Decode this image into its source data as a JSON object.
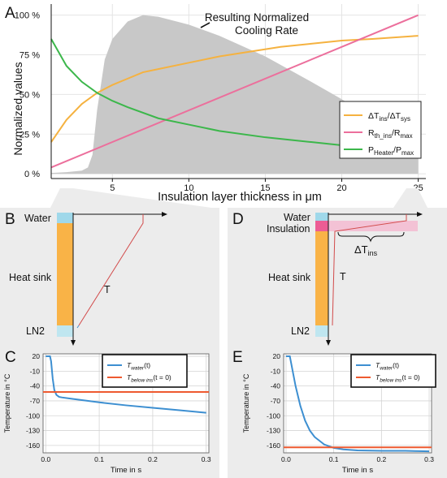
{
  "panel_labels": {
    "A": "A",
    "B": "B",
    "C": "C",
    "D": "D",
    "E": "E"
  },
  "colors": {
    "orange": "#f5b240",
    "pink": "#ec6f9c",
    "green": "#3cb74b",
    "gray_area": "#c8c8c8",
    "blue": "#3d8fd1",
    "red_line": "#ee5a30",
    "heat_sink": "#f9b347",
    "water": "#9fd8ea",
    "ln2": "#bfe6f0",
    "insulation": "#ec5c94",
    "panel_bg": "#ededed"
  },
  "diagram_B": {
    "water": "Water",
    "heat_sink": "Heat sink",
    "ln2": "LN2",
    "t_label": "T"
  },
  "diagram_D": {
    "water": "Water",
    "insulation": "Insulation",
    "heat_sink": "Heat sink",
    "ln2": "LN2",
    "t_label": "T",
    "delta_label": "ΔT",
    "delta_sub": "ins"
  },
  "chart_data": [
    {
      "id": "A",
      "type": "line",
      "xlabel": "Insulation layer thickness in μm",
      "ylabel": "Normalized values",
      "xlim": [
        1,
        25.5
      ],
      "ylim": [
        -3,
        107
      ],
      "xticks": [
        5,
        10,
        15,
        20,
        25
      ],
      "yticks": [
        0,
        25,
        50,
        75,
        100
      ],
      "ytick_labels": [
        "0 %",
        "25 %",
        "50 %",
        "75 %",
        "100 %"
      ],
      "grid": true,
      "legend_position": "right",
      "annotation": "Resulting Normalized Cooling Rate",
      "area": {
        "x": [
          1,
          2,
          3,
          3.4,
          3.7,
          4.0,
          4.5,
          5,
          6,
          7,
          8,
          10,
          12,
          15,
          18,
          20,
          22,
          23,
          24,
          25
        ],
        "y": [
          0.5,
          1,
          2,
          4,
          12,
          40,
          72,
          85,
          96,
          100,
          99,
          94,
          87,
          74,
          58,
          47,
          35,
          28,
          22,
          17
        ]
      },
      "series": [
        {
          "name_main": "ΔT",
          "name_sub": "ins",
          "name_main2": "/ΔT",
          "name_sub2": "sys",
          "color": "#f5b240",
          "x": [
            1,
            2,
            3,
            4,
            5,
            6,
            7,
            8,
            10,
            12,
            14,
            16,
            18,
            20,
            22,
            25
          ],
          "y": [
            20,
            34,
            44,
            51,
            56,
            60,
            64,
            66,
            70,
            74,
            77,
            80,
            82,
            84,
            85,
            87
          ]
        },
        {
          "name_main": "R",
          "name_sub": "th_ins",
          "name_main2": "/R",
          "name_sub2": "max",
          "color": "#ec6f9c",
          "x": [
            1,
            25
          ],
          "y": [
            4,
            100
          ]
        },
        {
          "name_main": "P",
          "name_sub": "Heater",
          "name_main2": "/P",
          "name_sub2": "max",
          "color": "#3cb74b",
          "x": [
            1,
            2,
            3,
            4,
            5,
            6,
            8,
            10,
            12,
            15,
            18,
            20,
            22,
            25
          ],
          "y": [
            85,
            68,
            58,
            51,
            46,
            42,
            35,
            31,
            27,
            23,
            20,
            18,
            17,
            15
          ]
        }
      ]
    },
    {
      "id": "C",
      "type": "line",
      "xlabel": "Time in s",
      "ylabel": "Temperature in °C",
      "xlim": [
        -0.005,
        0.305
      ],
      "ylim": [
        -175,
        25
      ],
      "xticks": [
        0.0,
        0.1,
        0.2,
        0.3
      ],
      "yticks": [
        20,
        -10,
        -40,
        -70,
        -100,
        -130,
        -160
      ],
      "grid": true,
      "legend_position": "top-right",
      "series": [
        {
          "name_main": "T",
          "name_sub": "water",
          "name_suffix": "(t)",
          "color": "#3d8fd1",
          "x": [
            0,
            0.008,
            0.01,
            0.013,
            0.016,
            0.02,
            0.025,
            0.03,
            0.05,
            0.1,
            0.15,
            0.2,
            0.25,
            0.3
          ],
          "y": [
            20,
            20,
            10,
            -25,
            -48,
            -58,
            -62,
            -63,
            -66,
            -73,
            -79,
            -84,
            -89,
            -94
          ]
        },
        {
          "name_main": "T",
          "name_sub": "below ins",
          "name_suffix": "(t = 0)",
          "color": "#ee5a30",
          "x": [
            -0.005,
            0.305
          ],
          "y": [
            -52,
            -52
          ]
        }
      ]
    },
    {
      "id": "E",
      "type": "line",
      "xlabel": "Time in s",
      "ylabel": "Temperature in °C",
      "xlim": [
        -0.005,
        0.305
      ],
      "ylim": [
        -175,
        25
      ],
      "xticks": [
        0.0,
        0.1,
        0.2,
        0.3
      ],
      "yticks": [
        20,
        -10,
        -40,
        -70,
        -100,
        -130,
        -160
      ],
      "grid": true,
      "legend_position": "top-right",
      "series": [
        {
          "name_main": "T",
          "name_sub": "water",
          "name_suffix": "(t)",
          "color": "#3d8fd1",
          "x": [
            0,
            0.008,
            0.01,
            0.015,
            0.02,
            0.03,
            0.04,
            0.05,
            0.06,
            0.08,
            0.1,
            0.12,
            0.15,
            0.2,
            0.25,
            0.3
          ],
          "y": [
            20,
            20,
            10,
            -15,
            -40,
            -80,
            -110,
            -130,
            -143,
            -158,
            -165,
            -168,
            -170,
            -171,
            -171,
            -172
          ]
        },
        {
          "name_main": "T",
          "name_sub": "below ins",
          "name_suffix": "(t = 0)",
          "color": "#ee5a30",
          "x": [
            -0.005,
            0.305
          ],
          "y": [
            -164,
            -164
          ]
        }
      ]
    }
  ]
}
